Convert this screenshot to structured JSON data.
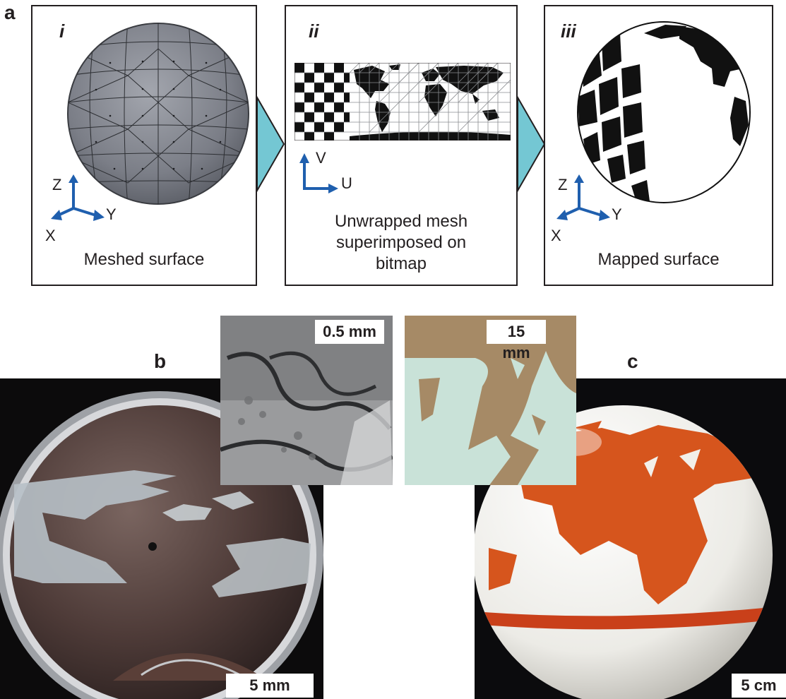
{
  "panel_a": {
    "letter": "a",
    "steps": [
      {
        "numeral": "i",
        "caption": "Meshed surface",
        "axes": {
          "z": "Z",
          "y": "Y",
          "x": "X"
        }
      },
      {
        "numeral": "ii",
        "caption_lines": [
          "Unwrapped mesh",
          "superimposed on",
          "bitmap"
        ],
        "axes": {
          "v": "V",
          "u": "U"
        }
      },
      {
        "numeral": "iii",
        "caption": "Mapped surface",
        "axes": {
          "z": "Z",
          "y": "Y",
          "x": "X"
        }
      }
    ],
    "colors": {
      "arrow": "#74c7d3",
      "axis": "#1f5fae",
      "sphere": "#7d8089"
    }
  },
  "panel_b": {
    "letter": "b",
    "inset_scale": "0.5 mm",
    "scale": "5 mm"
  },
  "panel_c": {
    "letter": "c",
    "inset_scale": "15 mm",
    "scale": "5 cm"
  }
}
